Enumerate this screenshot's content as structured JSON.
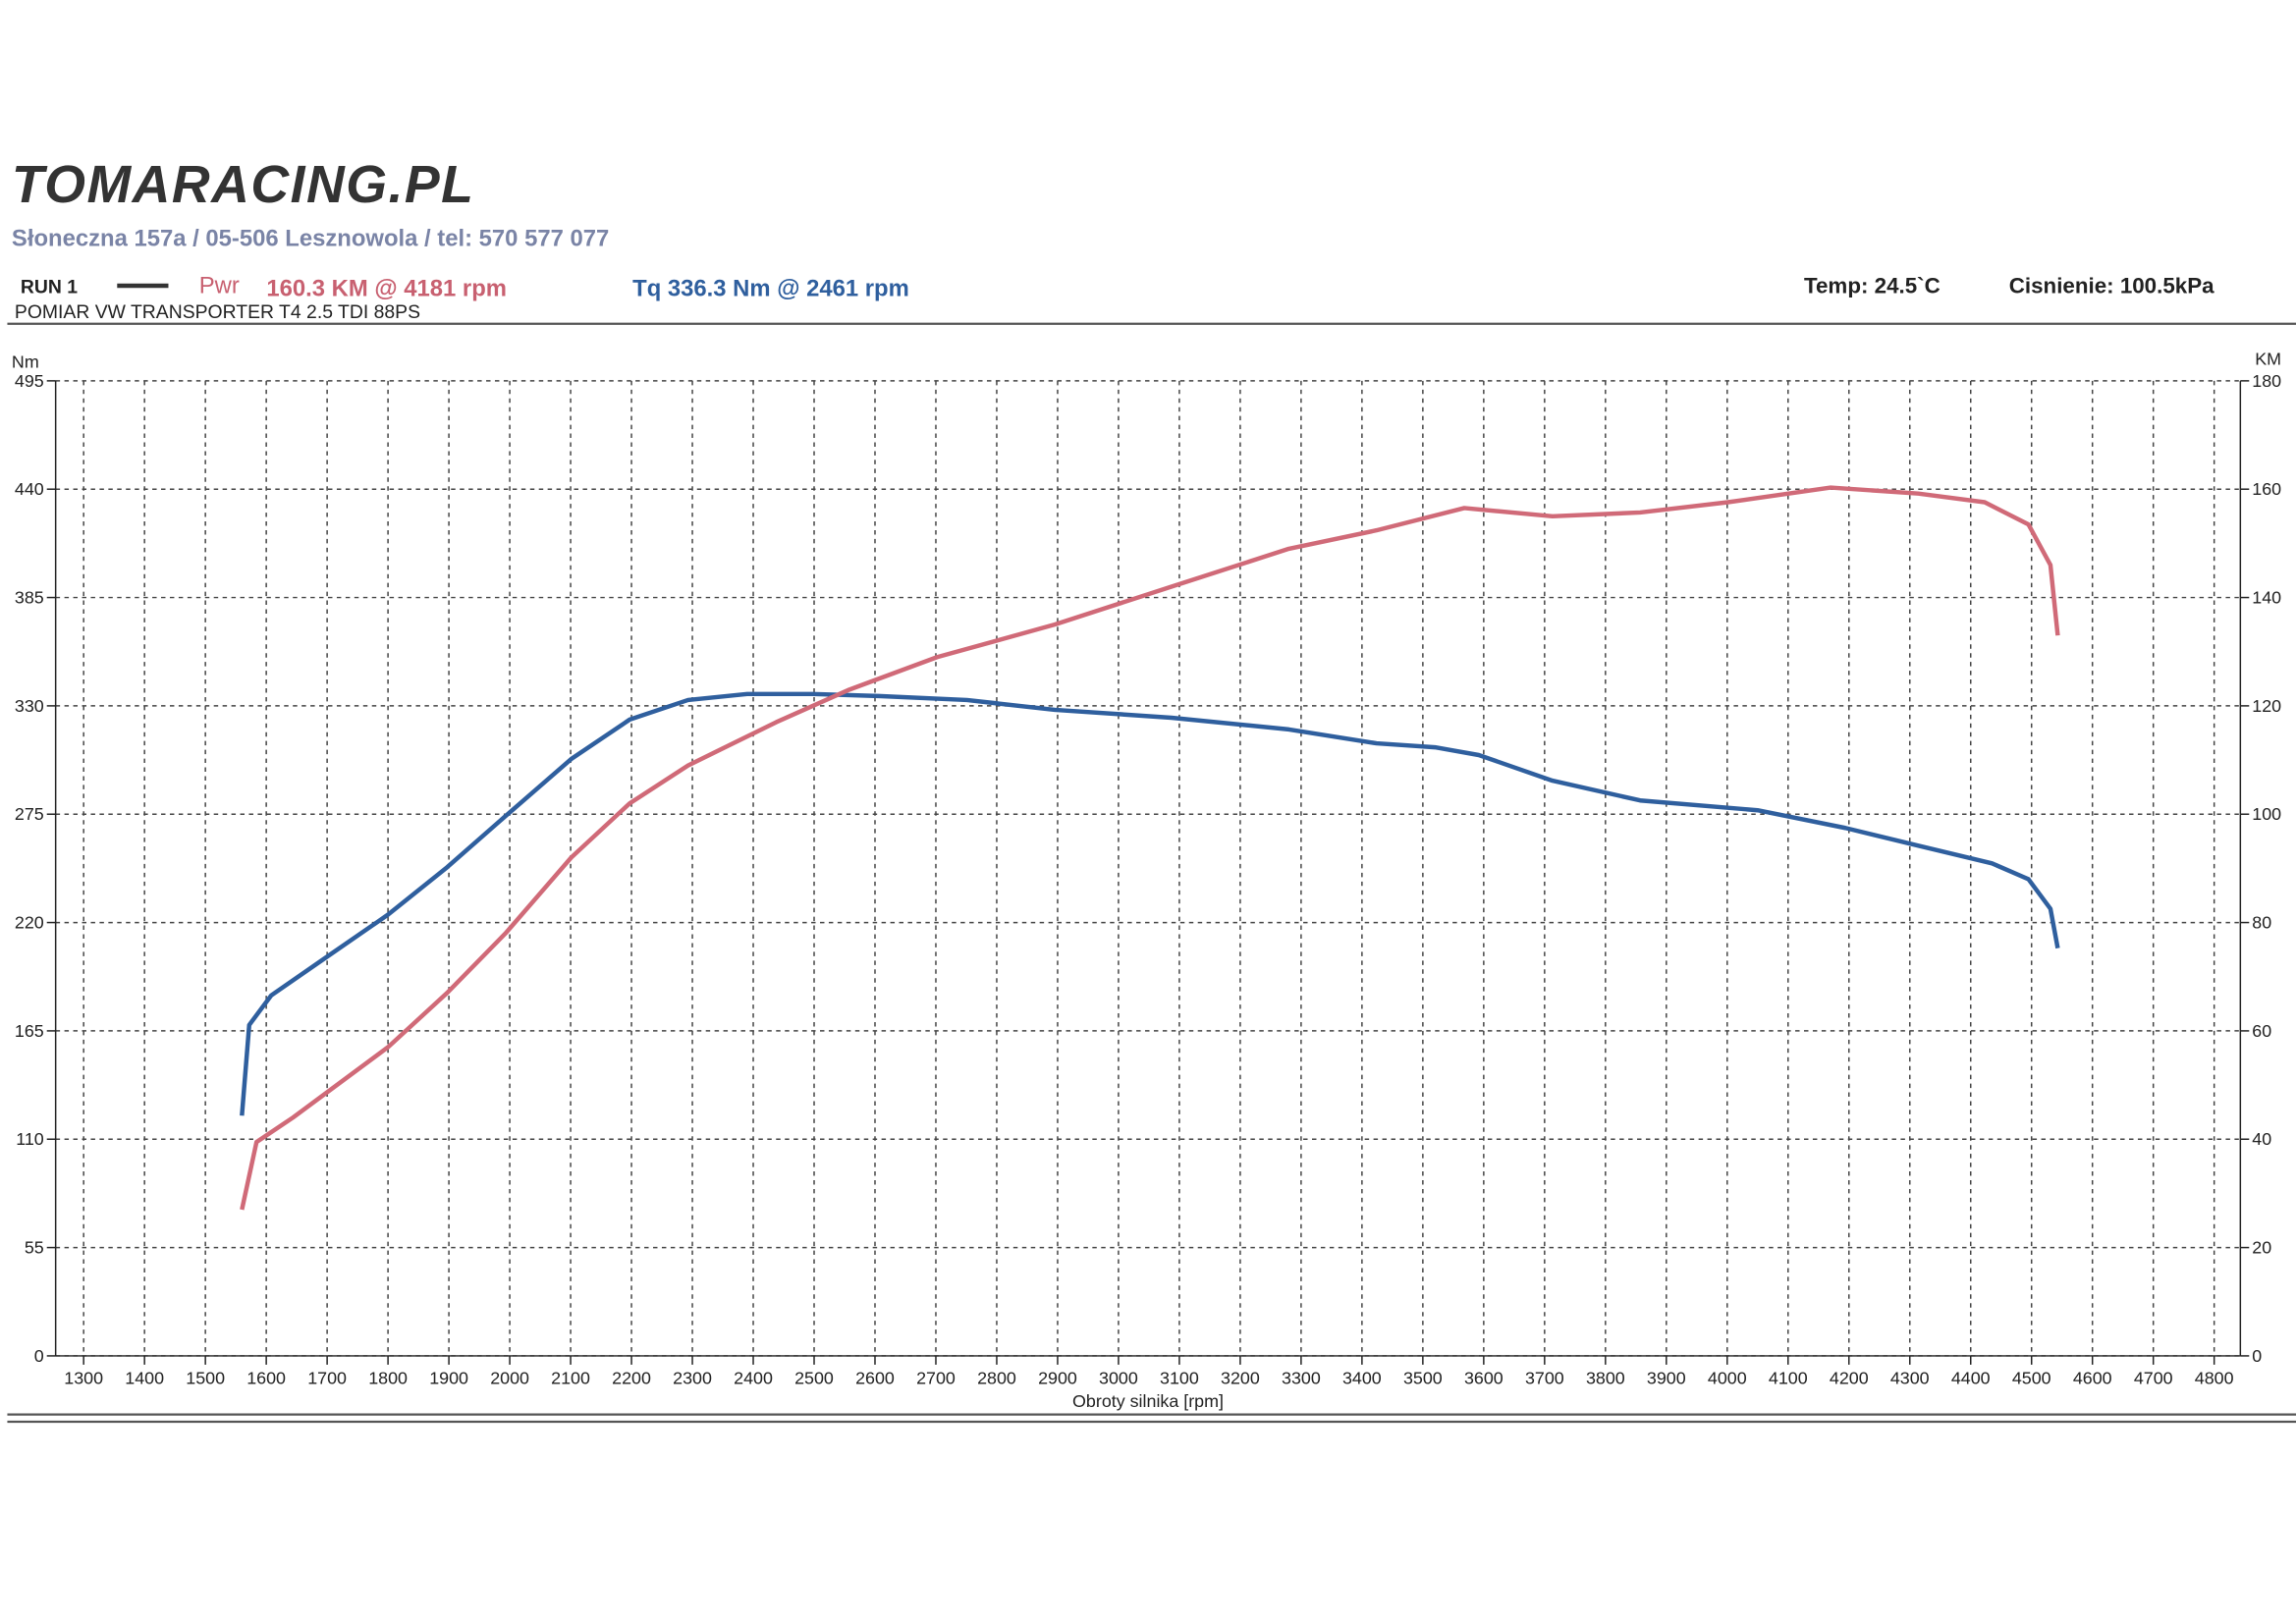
{
  "chart_data": {
    "type": "line",
    "logo": "TOMARACING.PL",
    "address": "Słoneczna 157a / 05-506 Lesznowola / tel: 570 577 077",
    "run": "RUN 1",
    "title": "POMIAR VW TRANSPORTER T4 2.5 TDI 88PS",
    "temperature": "Temp: 24.5`C",
    "pressure": "Cisnienie: 100.5kPa",
    "xlabel": "Obroty silnika [rpm]",
    "ylabel": "Nm",
    "y2label": "KM",
    "grid": true,
    "xlim": [
      1254,
      4843
    ],
    "xticks": [
      1300,
      1400,
      1500,
      1600,
      1700,
      1800,
      1900,
      2000,
      2100,
      2200,
      2300,
      2400,
      2500,
      2600,
      2700,
      2800,
      2900,
      3000,
      3100,
      3200,
      3300,
      3400,
      3500,
      3600,
      3700,
      3800,
      3900,
      4000,
      4100,
      4200,
      4300,
      4400,
      4500,
      4600,
      4700,
      4800
    ],
    "ylim": [
      0,
      495
    ],
    "yticks": [
      0,
      55,
      110,
      165,
      220,
      275,
      330,
      385,
      440,
      495
    ],
    "y2lim": [
      0,
      180
    ],
    "y2ticks": [
      0,
      20,
      40,
      60,
      80,
      100,
      120,
      140,
      160,
      180
    ],
    "series": [
      {
        "name": "Tq 336.3 Nm @ 2461 rpm",
        "color": "#2f5f9e",
        "x": [
          1560,
          1572,
          1608,
          1692,
          1800,
          1897,
          1993,
          2101,
          2197,
          2293,
          2390,
          2498,
          2606,
          2751,
          2895,
          3087,
          3280,
          3424,
          3520,
          3592,
          3713,
          3857,
          4050,
          4194,
          4314,
          4435,
          4495,
          4531,
          4543
        ],
        "values": [
          122,
          168,
          183,
          201,
          224,
          248,
          274,
          303,
          323,
          333,
          336,
          336,
          335,
          333,
          328,
          324,
          318,
          311,
          309,
          305,
          292,
          282,
          277,
          268,
          259,
          250,
          242,
          227,
          207
        ]
      },
      {
        "name": "Pwr",
        "label": "160.3 KM @ 4181 rpm",
        "color": "#d06a78",
        "axis": "y2",
        "x": [
          1560,
          1584,
          1644,
          1800,
          1897,
          1993,
          2101,
          2197,
          2293,
          2438,
          2558,
          2702,
          2895,
          3087,
          3280,
          3424,
          3568,
          3713,
          3857,
          4001,
          4170,
          4314,
          4423,
          4495,
          4531,
          4543
        ],
        "values": [
          27,
          39.5,
          44,
          57,
          67,
          78,
          92,
          102,
          109,
          117,
          123,
          129,
          135,
          142,
          149,
          152.4,
          156.5,
          155,
          155.7,
          157.6,
          160.3,
          159.2,
          157.6,
          153.5,
          146,
          133
        ]
      }
    ]
  }
}
